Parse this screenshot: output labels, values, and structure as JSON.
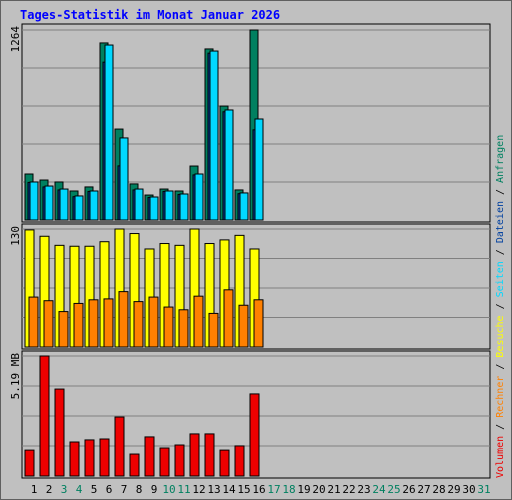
{
  "chart_data": [
    {
      "type": "bar",
      "title": "Tages-Statistik im Monat Januar 2026",
      "legend_separator": "/",
      "ylim": [
        0,
        1264
      ],
      "yticks": [
        1264
      ],
      "series": [
        {
          "name": "Anfragen",
          "color": "#008060",
          "values": [
            306,
            266,
            253,
            193,
            220,
            1178,
            605,
            240,
            166,
            206,
            193,
            359,
            1138,
            758,
            200,
            1264,
            null,
            null,
            null,
            null,
            null,
            null,
            null,
            null,
            null,
            null,
            null,
            null,
            null,
            null,
            null
          ]
        },
        {
          "name": "Dateien",
          "color": "#0040a0",
          "values": [
            250,
            220,
            200,
            155,
            190,
            1050,
            360,
            200,
            150,
            190,
            170,
            300,
            1110,
            720,
            175,
            600,
            null,
            null,
            null,
            null,
            null,
            null,
            null,
            null,
            null,
            null,
            null,
            null,
            null,
            null,
            null
          ]
        },
        {
          "name": "Seiten",
          "color": "#00d8ff",
          "values": [
            253,
            226,
            206,
            160,
            193,
            1164,
            546,
            206,
            153,
            193,
            173,
            306,
            1124,
            732,
            180,
            672,
            null,
            null,
            null,
            null,
            null,
            null,
            null,
            null,
            null,
            null,
            null,
            null,
            null,
            null,
            null
          ]
        }
      ]
    },
    {
      "type": "bar",
      "ylim": [
        0,
        130
      ],
      "yticks": [
        130
      ],
      "series": [
        {
          "name": "Besuche",
          "color": "#ffff00",
          "values": [
            129,
            122,
            112,
            111,
            111,
            116,
            130,
            125,
            108,
            114,
            112,
            130,
            114,
            118,
            123,
            108,
            null,
            null,
            null,
            null,
            null,
            null,
            null,
            null,
            null,
            null,
            null,
            null,
            null,
            null,
            null
          ]
        },
        {
          "name": "Rechner",
          "color": "#ff8000",
          "values": [
            55,
            51,
            39,
            48,
            52,
            53,
            61,
            50,
            55,
            44,
            41,
            56,
            37,
            63,
            46,
            52,
            null,
            null,
            null,
            null,
            null,
            null,
            null,
            null,
            null,
            null,
            null,
            null,
            null,
            null,
            null
          ]
        }
      ]
    },
    {
      "type": "bar",
      "ylim": [
        0,
        5.19
      ],
      "yticks": [
        {
          "value": 5.19,
          "label": "5.19 MB"
        }
      ],
      "categories": [
        "1",
        "2",
        "3",
        "4",
        "5",
        "6",
        "7",
        "8",
        "9",
        "10",
        "11",
        "12",
        "13",
        "14",
        "15",
        "16",
        "17",
        "18",
        "19",
        "20",
        "21",
        "22",
        "23",
        "24",
        "25",
        "26",
        "27",
        "28",
        "29",
        "30",
        "31"
      ],
      "category_colors": [
        "#000000",
        "#000000",
        "#008060",
        "#008060",
        "#000000",
        "#000000",
        "#000000",
        "#000000",
        "#000000",
        "#008060",
        "#008060",
        "#000000",
        "#000000",
        "#000000",
        "#000000",
        "#000000",
        "#008060",
        "#008060",
        "#000000",
        "#000000",
        "#000000",
        "#000000",
        "#000000",
        "#008060",
        "#008060",
        "#000000",
        "#000000",
        "#000000",
        "#000000",
        "#000000",
        "#008060"
      ],
      "series": [
        {
          "name": "Volumen",
          "color": "#ee0000",
          "values": [
            1.12,
            5.19,
            3.76,
            1.47,
            1.56,
            1.6,
            2.55,
            0.95,
            1.69,
            1.21,
            1.34,
            1.82,
            1.82,
            1.12,
            1.3,
            3.55,
            null,
            null,
            null,
            null,
            null,
            null,
            null,
            null,
            null,
            null,
            null,
            null,
            null,
            null,
            null
          ]
        }
      ]
    }
  ]
}
